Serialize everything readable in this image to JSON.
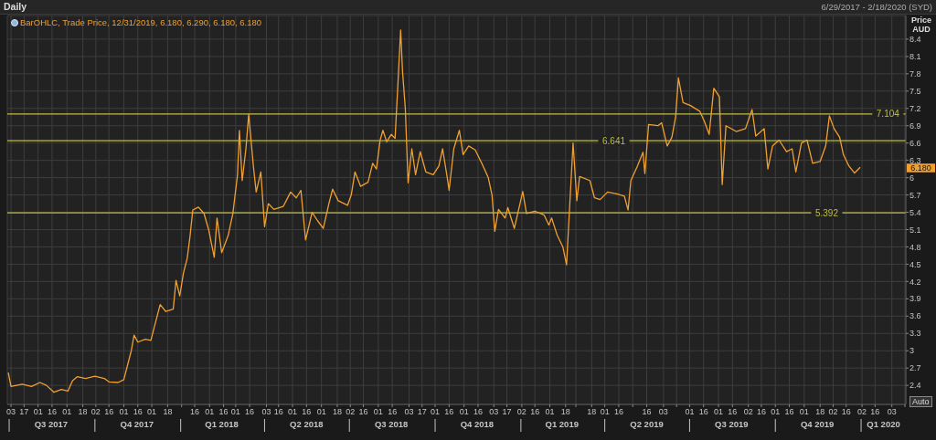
{
  "chart_data": {
    "type": "line",
    "title": "Daily",
    "ylabel": "Price AUD",
    "annotations": [
      "6/29/2017 - 2/18/2020 (SYD)",
      {
        "text": "6.180",
        "y": 6.18
      },
      "Auto"
    ],
    "x": [
      "2017-06-30",
      "2017-07-03",
      "2017-07-15",
      "2017-07-25",
      "2017-08-03",
      "2017-08-10",
      "2017-08-18",
      "2017-08-26",
      "2017-09-02",
      "2017-09-07",
      "2017-09-12",
      "2017-09-21",
      "2017-10-01",
      "2017-10-11",
      "2017-10-16",
      "2017-10-26",
      "2017-11-01",
      "2017-11-05",
      "2017-11-09",
      "2017-11-12",
      "2017-11-16",
      "2017-11-24",
      "2017-11-30",
      "2017-12-04",
      "2017-12-10",
      "2017-12-16",
      "2017-12-24",
      "2017-12-27",
      "2017-12-31",
      "2018-01-04",
      "2018-01-08",
      "2018-01-11",
      "2018-01-14",
      "2018-01-20",
      "2018-01-26",
      "2018-01-31",
      "2018-02-06",
      "2018-02-09",
      "2018-02-14",
      "2018-02-21",
      "2018-02-26",
      "2018-03-03",
      "2018-03-05",
      "2018-03-08",
      "2018-03-12",
      "2018-03-15",
      "2018-03-20",
      "2018-03-23",
      "2018-03-28",
      "2018-04-01",
      "2018-04-05",
      "2018-04-11",
      "2018-04-21",
      "2018-04-29",
      "2018-05-05",
      "2018-05-10",
      "2018-05-15",
      "2018-05-22",
      "2018-05-28",
      "2018-06-03",
      "2018-06-09",
      "2018-06-13",
      "2018-06-19",
      "2018-06-29",
      "2018-07-03",
      "2018-07-07",
      "2018-07-13",
      "2018-07-21",
      "2018-07-26",
      "2018-07-30",
      "2018-08-03",
      "2018-08-06",
      "2018-08-10",
      "2018-08-15",
      "2018-08-19",
      "2018-08-22",
      "2018-08-25",
      "2018-08-27",
      "2018-08-30",
      "2018-09-02",
      "2018-09-06",
      "2018-09-10",
      "2018-09-15",
      "2018-09-21",
      "2018-09-29",
      "2018-10-05",
      "2018-10-09",
      "2018-10-14",
      "2018-10-16",
      "2018-10-21",
      "2018-10-27",
      "2018-10-31",
      "2018-11-06",
      "2018-11-13",
      "2018-11-20",
      "2018-11-27",
      "2018-12-01",
      "2018-12-04",
      "2018-12-08",
      "2018-12-15",
      "2018-12-18",
      "2018-12-25",
      "2019-01-03",
      "2019-01-07",
      "2019-01-16",
      "2019-01-26",
      "2019-01-31",
      "2019-02-03",
      "2019-02-09",
      "2019-02-15",
      "2019-02-19",
      "2019-02-22",
      "2019-02-26",
      "2019-03-02",
      "2019-03-05",
      "2019-03-16",
      "2019-03-21",
      "2019-03-27",
      "2019-04-04",
      "2019-04-14",
      "2019-04-22",
      "2019-04-26",
      "2019-04-29",
      "2019-05-06",
      "2019-05-12",
      "2019-05-14",
      "2019-05-18",
      "2019-05-28",
      "2019-06-01",
      "2019-06-07",
      "2019-06-12",
      "2019-06-16",
      "2019-06-19",
      "2019-06-24",
      "2019-07-02",
      "2019-07-12",
      "2019-07-17",
      "2019-07-22",
      "2019-07-27",
      "2019-08-02",
      "2019-08-05",
      "2019-08-09",
      "2019-08-20",
      "2019-08-30",
      "2019-09-06",
      "2019-09-10",
      "2019-09-19",
      "2019-09-23",
      "2019-09-28",
      "2019-10-05",
      "2019-10-13",
      "2019-10-19",
      "2019-10-23",
      "2019-10-29",
      "2019-11-04",
      "2019-11-10",
      "2019-11-18",
      "2019-11-24",
      "2019-11-28",
      "2019-12-03",
      "2019-12-09",
      "2019-12-13",
      "2019-12-19",
      "2019-12-25",
      "2019-12-31"
    ],
    "series": [
      {
        "name": "BarOHLC, Trade Price, 12/31/2019, 6.180, 6.290, 6.180, 6.180",
        "color": "#f0a030",
        "values": [
          2.62,
          2.38,
          2.42,
          2.38,
          2.45,
          2.4,
          2.28,
          2.33,
          2.3,
          2.48,
          2.55,
          2.52,
          2.56,
          2.52,
          2.46,
          2.45,
          2.5,
          2.75,
          3.0,
          3.27,
          3.15,
          3.2,
          3.18,
          3.43,
          3.8,
          3.68,
          3.72,
          4.22,
          3.95,
          4.35,
          4.6,
          4.98,
          5.44,
          5.49,
          5.38,
          5.1,
          4.62,
          5.3,
          4.7,
          5.0,
          5.38,
          6.05,
          6.82,
          5.95,
          6.5,
          7.1,
          6.2,
          5.75,
          6.1,
          5.15,
          5.55,
          5.45,
          5.5,
          5.75,
          5.65,
          5.78,
          4.92,
          5.4,
          5.25,
          5.12,
          5.55,
          5.8,
          5.6,
          5.52,
          5.7,
          6.1,
          5.85,
          5.92,
          6.25,
          6.15,
          6.65,
          6.82,
          6.62,
          6.75,
          6.68,
          7.6,
          8.56,
          7.85,
          7.2,
          5.91,
          6.5,
          6.05,
          6.45,
          6.1,
          6.05,
          6.2,
          6.5,
          6.0,
          5.78,
          6.5,
          6.82,
          6.4,
          6.55,
          6.48,
          6.25,
          6.0,
          5.7,
          5.07,
          5.45,
          5.3,
          5.48,
          5.12,
          5.76,
          5.38,
          5.42,
          5.35,
          5.18,
          5.3,
          5.0,
          4.8,
          4.49,
          5.4,
          6.6,
          5.6,
          6.02,
          5.95,
          5.65,
          5.62,
          5.75,
          5.72,
          5.68,
          5.44,
          5.95,
          6.2,
          6.44,
          6.07,
          6.92,
          6.9,
          6.95,
          6.55,
          6.7,
          7.05,
          7.73,
          7.3,
          7.25,
          7.15,
          6.97,
          6.75,
          7.55,
          7.4,
          5.88,
          6.9,
          6.8,
          6.85,
          7.18,
          6.72,
          6.85,
          6.15,
          6.55,
          6.65,
          6.45,
          6.5,
          6.1,
          6.6,
          6.65,
          6.25,
          6.28,
          6.55,
          7.07,
          6.85,
          6.7,
          6.4,
          6.2,
          6.08,
          6.18
        ]
      }
    ],
    "xlim": [
      "2017-06-29",
      "2020-02-18"
    ],
    "xticks": [
      {
        "value": "2017-07-03",
        "label": "03"
      },
      {
        "value": "2017-07-17",
        "label": "17"
      },
      {
        "value": "2017-08-01",
        "label": "01"
      },
      {
        "value": "2017-08-16",
        "label": "16"
      },
      {
        "value": "2017-09-01",
        "label": "01"
      },
      {
        "value": "2017-09-18",
        "label": "18"
      },
      {
        "value": "2017-10-02",
        "label": "02"
      },
      {
        "value": "2017-10-16",
        "label": "16"
      },
      {
        "value": "2017-11-01",
        "label": "01"
      },
      {
        "value": "2017-11-16",
        "label": "16"
      },
      {
        "value": "2017-12-01",
        "label": "01"
      },
      {
        "value": "2017-12-18",
        "label": "18"
      },
      {
        "value": "2018-01-02",
        "label": null
      },
      {
        "value": "2018-01-16",
        "label": "16"
      },
      {
        "value": "2018-02-01",
        "label": "01"
      },
      {
        "value": "2018-02-16",
        "label": "16"
      },
      {
        "value": "2018-03-01",
        "label": "01"
      },
      {
        "value": "2018-03-16",
        "label": "16"
      },
      {
        "value": "2018-04-03",
        "label": "03"
      },
      {
        "value": "2018-04-16",
        "label": "16"
      },
      {
        "value": "2018-05-01",
        "label": "01"
      },
      {
        "value": "2018-05-16",
        "label": "16"
      },
      {
        "value": "2018-06-01",
        "label": "01"
      },
      {
        "value": "2018-06-18",
        "label": "18"
      },
      {
        "value": "2018-07-02",
        "label": "02"
      },
      {
        "value": "2018-07-16",
        "label": "16"
      },
      {
        "value": "2018-08-01",
        "label": "01"
      },
      {
        "value": "2018-08-16",
        "label": "16"
      },
      {
        "value": "2018-09-03",
        "label": "03"
      },
      {
        "value": "2018-09-17",
        "label": "17"
      },
      {
        "value": "2018-10-01",
        "label": "01"
      },
      {
        "value": "2018-10-16",
        "label": "16"
      },
      {
        "value": "2018-11-01",
        "label": "01"
      },
      {
        "value": "2018-11-16",
        "label": "16"
      },
      {
        "value": "2018-12-03",
        "label": "03"
      },
      {
        "value": "2018-12-17",
        "label": "17"
      },
      {
        "value": "2019-01-02",
        "label": "02"
      },
      {
        "value": "2019-01-16",
        "label": "16"
      },
      {
        "value": "2019-02-01",
        "label": "01"
      },
      {
        "value": "2019-02-18",
        "label": "18"
      },
      {
        "value": "2019-03-01",
        "label": null
      },
      {
        "value": "2019-03-18",
        "label": "18"
      },
      {
        "value": "2019-04-01",
        "label": "01"
      },
      {
        "value": "2019-04-16",
        "label": "16"
      },
      {
        "value": "2019-05-01",
        "label": null
      },
      {
        "value": "2019-05-16",
        "label": "16"
      },
      {
        "value": "2019-06-03",
        "label": "03"
      },
      {
        "value": "2019-06-17",
        "label": null
      },
      {
        "value": "2019-07-01",
        "label": "01"
      },
      {
        "value": "2019-07-16",
        "label": "16"
      },
      {
        "value": "2019-08-01",
        "label": "01"
      },
      {
        "value": "2019-08-16",
        "label": "16"
      },
      {
        "value": "2019-09-02",
        "label": "02"
      },
      {
        "value": "2019-09-16",
        "label": "16"
      },
      {
        "value": "2019-10-01",
        "label": "01"
      },
      {
        "value": "2019-10-16",
        "label": "16"
      },
      {
        "value": "2019-11-01",
        "label": "01"
      },
      {
        "value": "2019-11-18",
        "label": "18"
      },
      {
        "value": "2019-12-02",
        "label": "02"
      },
      {
        "value": "2019-12-16",
        "label": "16"
      },
      {
        "value": "2020-01-02",
        "label": "02"
      },
      {
        "value": "2020-01-16",
        "label": "16"
      },
      {
        "value": "2020-02-03",
        "label": "03"
      },
      {
        "value": "2020-02-17",
        "label": null
      }
    ],
    "x2lim": [
      "2017-06-29",
      "2020-02-18"
    ],
    "x2ticks": [
      {
        "value": "2017-07-01",
        "label": null
      },
      {
        "value": "2017-08-15",
        "label": "Q3 2017"
      },
      {
        "value": "2017-10-01",
        "label": null
      },
      {
        "value": "2017-11-15",
        "label": "Q4 2017"
      },
      {
        "value": "2018-01-01",
        "label": null
      },
      {
        "value": "2018-02-14",
        "label": "Q1 2018"
      },
      {
        "value": "2018-04-01",
        "label": null
      },
      {
        "value": "2018-05-16",
        "label": "Q2 2018"
      },
      {
        "value": "2018-07-01",
        "label": null
      },
      {
        "value": "2018-08-15",
        "label": "Q3 2018"
      },
      {
        "value": "2018-10-01",
        "label": null
      },
      {
        "value": "2018-11-15",
        "label": "Q4 2018"
      },
      {
        "value": "2019-01-01",
        "label": null
      },
      {
        "value": "2019-02-14",
        "label": "Q1 2019"
      },
      {
        "value": "2019-04-01",
        "label": null
      },
      {
        "value": "2019-05-16",
        "label": "Q2 2019"
      },
      {
        "value": "2019-07-01",
        "label": null
      },
      {
        "value": "2019-08-15",
        "label": "Q3 2019"
      },
      {
        "value": "2019-10-01",
        "label": null
      },
      {
        "value": "2019-11-15",
        "label": "Q4 2019"
      },
      {
        "value": "2020-01-01",
        "label": null
      },
      {
        "value": "2020-01-25",
        "label": "Q1 2020"
      }
    ],
    "ylim": [
      2.07,
      8.81
    ],
    "yticks": [
      2.4,
      2.7,
      3,
      3.3,
      3.6,
      3.9,
      4.2,
      4.5,
      4.8,
      5.1,
      5.4,
      5.7,
      6,
      6.3,
      6.6,
      6.9,
      7.2,
      7.5,
      7.8,
      8.1,
      8.4
    ],
    "ref_lines": [
      {
        "axis": "y",
        "value": 7.104,
        "label": "7.104",
        "color": "#bdbd45"
      },
      {
        "axis": "y",
        "value": 6.641,
        "label": "6.641",
        "color": "#bdbd45"
      },
      {
        "axis": "y",
        "value": 5.392,
        "label": "5.392",
        "color": "#bdbd45"
      }
    ],
    "grid": true,
    "legend": "top left"
  }
}
